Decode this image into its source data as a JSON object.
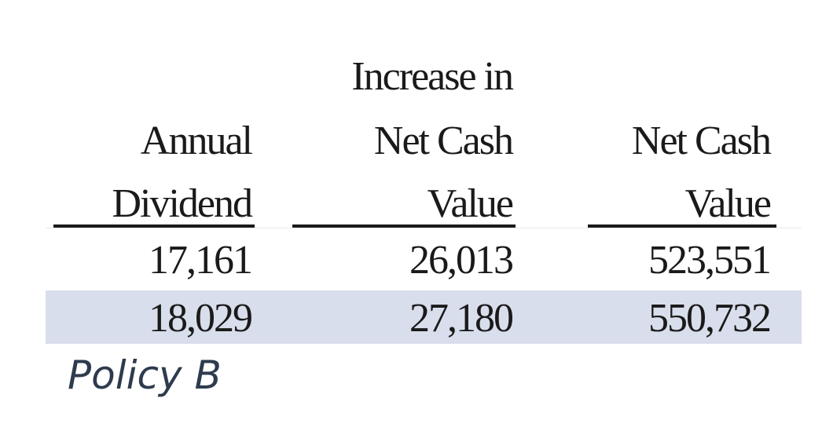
{
  "table": {
    "headers": [
      {
        "lines": [
          "",
          "Annual",
          "Dividend"
        ]
      },
      {
        "lines": [
          "Increase in",
          "Net Cash",
          "Value"
        ]
      },
      {
        "lines": [
          "",
          "Net Cash",
          "Value"
        ]
      }
    ],
    "rows": [
      [
        "17,161",
        "26,013",
        "523,551"
      ],
      [
        "18,029",
        "27,180",
        "550,732"
      ]
    ],
    "highlight_color": "#d9deec"
  },
  "caption": "Policy B"
}
